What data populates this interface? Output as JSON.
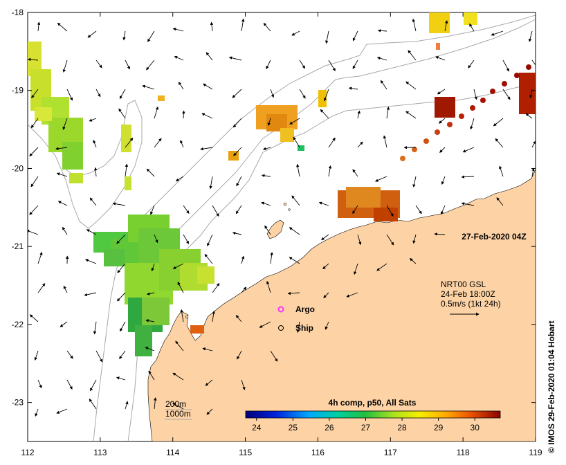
{
  "map": {
    "lon_range": [
      112,
      119
    ],
    "lat_range": [
      -23.5,
      -18
    ],
    "x_ticks": [
      "112",
      "113",
      "114",
      "115",
      "116",
      "117",
      "118",
      "119"
    ],
    "y_ticks": [
      "-18",
      "-19",
      "-20",
      "-21",
      "-22",
      "-23"
    ],
    "y_tick_values": [
      -18,
      -19,
      -20,
      -21,
      -22,
      -23
    ],
    "land_color": "#fdd3a6",
    "background_color": "#ffffff"
  },
  "timestamp": "27-Feb-2020 04Z",
  "current_info": {
    "line1": "NRT00 GSL",
    "line2": "24-Feb 18:00Z",
    "line3": "0.5m/s (1kt 24h)"
  },
  "legend": {
    "argo_label": "Argo",
    "ship_label": "Ship",
    "argo_color": "#ff33ff"
  },
  "depth_contours": {
    "label_200": "200m",
    "label_1000": "1000m"
  },
  "colorbar": {
    "title": "4h comp, p50, All Sats",
    "tick_labels": [
      "24",
      "25",
      "26",
      "27",
      "28",
      "29",
      "30"
    ],
    "min": 23.7,
    "max": 30.7
  },
  "credit": "© IMOS 29-Feb-2020 01:04 Hobart"
}
